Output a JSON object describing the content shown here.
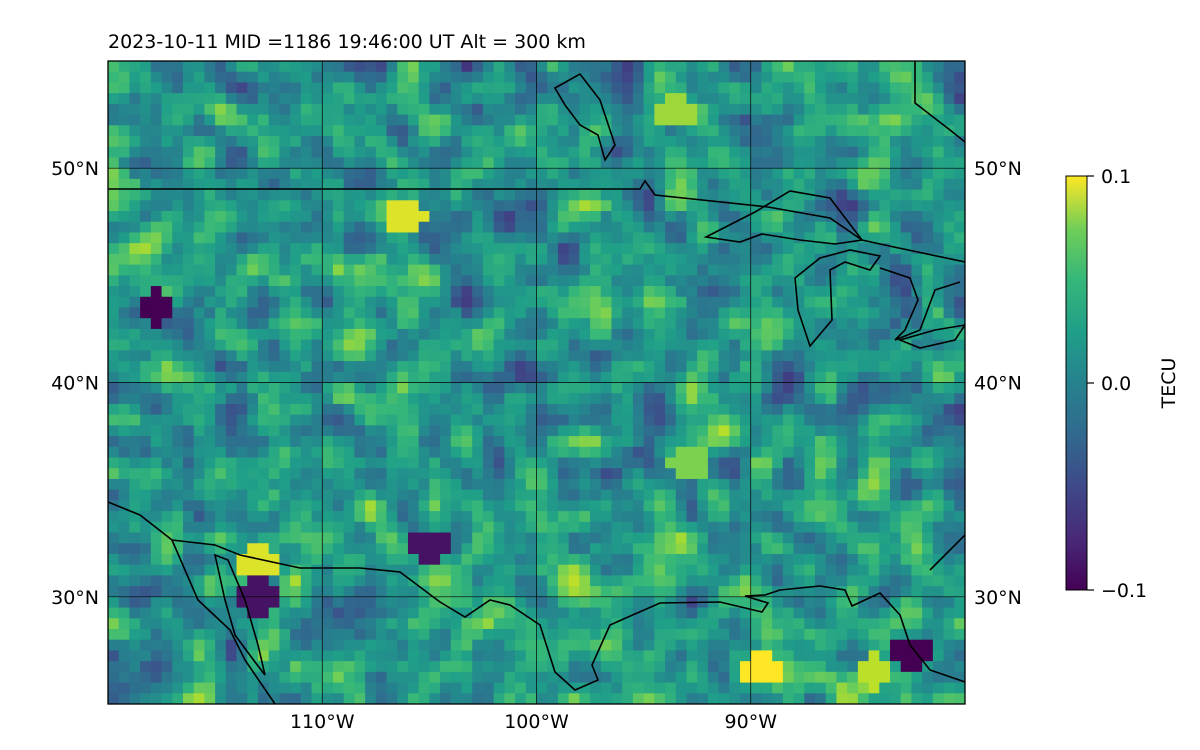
{
  "chart_data": {
    "type": "heatmap",
    "title": "2023-10-11  MID =1186    19:46:00  UT  Alt = 300 km",
    "x_ticks": [
      {
        "value": -110,
        "label": "110°W"
      },
      {
        "value": -100,
        "label": "100°W"
      },
      {
        "value": -90,
        "label": "90°W"
      }
    ],
    "y_ticks": [
      {
        "value": 50,
        "label": "50°N"
      },
      {
        "value": 40,
        "label": "40°N"
      },
      {
        "value": 30,
        "label": "30°N"
      }
    ],
    "xlim": [
      -120,
      -80
    ],
    "ylim": [
      25,
      55
    ],
    "colorbar": {
      "label": "TECU",
      "range": [
        -0.1,
        0.1
      ],
      "ticks": [
        {
          "value": 0.1,
          "label": "0.1"
        },
        {
          "value": 0.0,
          "label": "0.0"
        },
        {
          "value": -0.1,
          "label": "−0.1"
        }
      ],
      "colormap": "viridis"
    },
    "grid": true,
    "typical_value_range": [
      -0.05,
      0.05
    ],
    "highlights": [
      {
        "lon": -93.5,
        "lat": 52.6,
        "value": 0.07
      },
      {
        "lon": -106.2,
        "lat": 47.7,
        "value": 0.09
      },
      {
        "lon": -113.1,
        "lat": 31.5,
        "value": 0.09
      },
      {
        "lon": -113.1,
        "lat": 30.0,
        "value": -0.09
      },
      {
        "lon": -117.8,
        "lat": 43.5,
        "value": -0.1
      },
      {
        "lon": -89.5,
        "lat": 26.7,
        "value": 0.1
      },
      {
        "lon": -84.2,
        "lat": 26.5,
        "value": 0.08
      },
      {
        "lon": -82.5,
        "lat": 27.3,
        "value": -0.1
      },
      {
        "lon": -105.0,
        "lat": 32.3,
        "value": -0.09
      },
      {
        "lon": -92.8,
        "lat": 36.3,
        "value": 0.06
      }
    ]
  }
}
